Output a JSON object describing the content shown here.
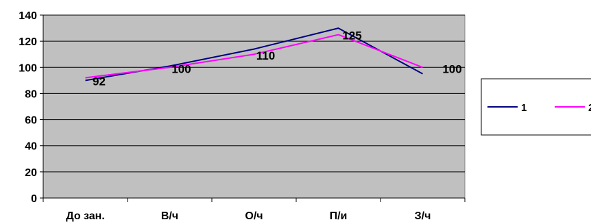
{
  "chart_data": {
    "type": "line",
    "categories": [
      "До зан.",
      "В/ч",
      "О/ч",
      "П/и",
      "З/ч"
    ],
    "series": [
      {
        "name": "1",
        "values": [
          90,
          101,
          114,
          130,
          95
        ],
        "color": "#000080"
      },
      {
        "name": "2",
        "values": [
          92,
          100,
          110,
          125,
          100
        ],
        "color": "#ff00ff"
      }
    ],
    "data_labels": [
      "92",
      "100",
      "110",
      "125",
      "100"
    ],
    "data_labels_series": "2",
    "yticks": [
      "0",
      "20",
      "40",
      "60",
      "80",
      "100",
      "120",
      "140"
    ],
    "ylim": [
      0,
      140
    ],
    "grid": true,
    "plot_background": "#c0c0c0",
    "legend": "right",
    "title": "",
    "xlabel": "",
    "ylabel": ""
  }
}
